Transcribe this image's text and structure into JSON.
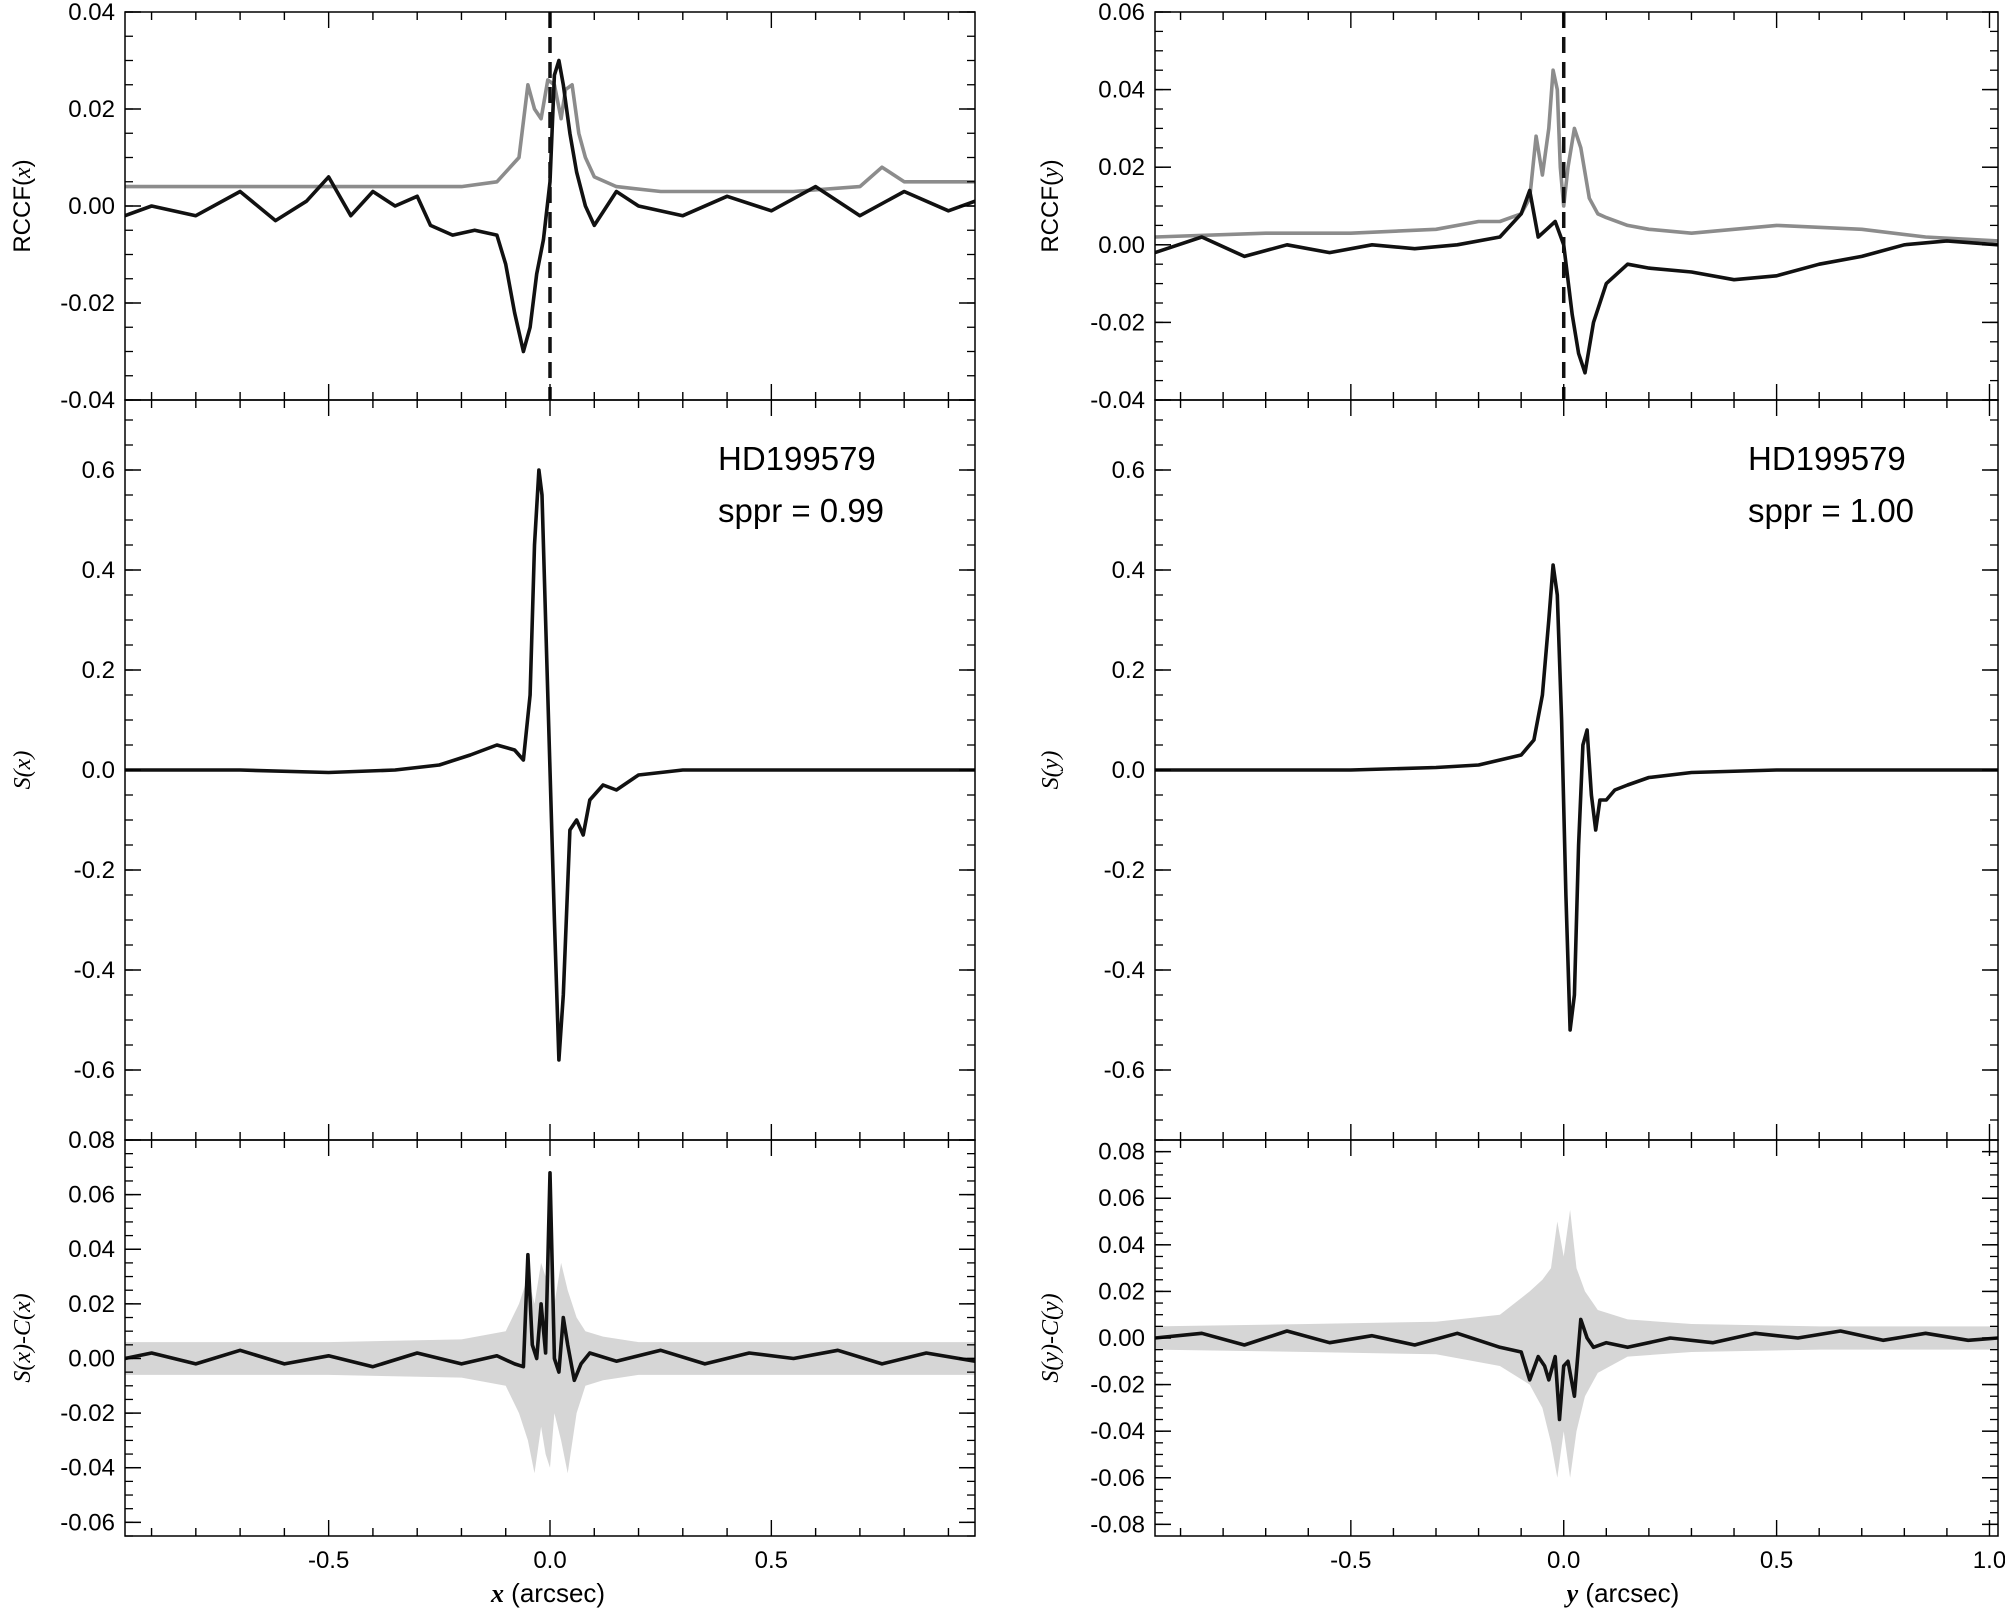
{
  "colors": {
    "main": "#111111",
    "secondary": "#8c8c8c",
    "band": "#d6d6d6",
    "axis": "#000000"
  },
  "chart_data": [
    {
      "type": "line",
      "id": "left",
      "xlabel_var": "x",
      "xlabel_unit": " (arcsec)",
      "xlim": [
        -0.96,
        0.96
      ],
      "xticks": [
        -0.5,
        0.0,
        0.5
      ],
      "xtick_labels": [
        "-0.5",
        "0.0",
        "0.5"
      ],
      "annotation": [
        "HD199579",
        "sppr = 0.99"
      ],
      "panels": [
        {
          "key": "rccf",
          "ylabel": "RCCF(x)",
          "ylim": [
            -0.04,
            0.04
          ],
          "yticks": [
            -0.04,
            -0.02,
            0.0,
            0.02,
            0.04
          ],
          "ytick_labels": [
            "-0.04",
            "-0.02",
            "0.00",
            "0.02",
            "0.04"
          ],
          "dashed_vline_x": 0.0,
          "series": [
            {
              "style": "gray",
              "x": [
                -0.96,
                -0.8,
                -0.6,
                -0.4,
                -0.2,
                -0.12,
                -0.07,
                -0.05,
                -0.035,
                -0.02,
                -0.005,
                0.01,
                0.025,
                0.035,
                0.05,
                0.065,
                0.08,
                0.1,
                0.15,
                0.25,
                0.4,
                0.55,
                0.7,
                0.75,
                0.8,
                0.96
              ],
              "y": [
                0.004,
                0.004,
                0.004,
                0.004,
                0.004,
                0.005,
                0.01,
                0.025,
                0.02,
                0.018,
                0.026,
                0.025,
                0.018,
                0.024,
                0.025,
                0.015,
                0.01,
                0.006,
                0.004,
                0.003,
                0.003,
                0.003,
                0.004,
                0.008,
                0.005,
                0.005
              ]
            },
            {
              "style": "black",
              "x": [
                -0.96,
                -0.9,
                -0.8,
                -0.7,
                -0.62,
                -0.55,
                -0.5,
                -0.45,
                -0.4,
                -0.35,
                -0.3,
                -0.27,
                -0.22,
                -0.17,
                -0.12,
                -0.1,
                -0.08,
                -0.06,
                -0.045,
                -0.03,
                -0.015,
                0.0,
                0.01,
                0.02,
                0.03,
                0.045,
                0.06,
                0.08,
                0.1,
                0.15,
                0.2,
                0.3,
                0.4,
                0.5,
                0.6,
                0.7,
                0.8,
                0.9,
                0.96
              ],
              "y": [
                -0.002,
                0.0,
                -0.002,
                0.003,
                -0.003,
                0.001,
                0.006,
                -0.002,
                0.003,
                0.0,
                0.002,
                -0.004,
                -0.006,
                -0.005,
                -0.006,
                -0.012,
                -0.022,
                -0.03,
                -0.025,
                -0.014,
                -0.007,
                0.005,
                0.027,
                0.03,
                0.025,
                0.015,
                0.007,
                0.0,
                -0.004,
                0.003,
                0.0,
                -0.002,
                0.002,
                -0.001,
                0.004,
                -0.002,
                0.003,
                -0.001,
                0.001
              ]
            }
          ]
        },
        {
          "key": "s",
          "ylabel": "S(x)",
          "ylim": [
            -0.74,
            0.74
          ],
          "yticks": [
            -0.6,
            -0.4,
            -0.2,
            0.0,
            0.2,
            0.4,
            0.6
          ],
          "ytick_labels": [
            "-0.6",
            "-0.4",
            "-0.2",
            "0.0",
            "0.2",
            "0.4",
            "0.6"
          ],
          "series": [
            {
              "style": "black",
              "x": [
                -0.96,
                -0.7,
                -0.5,
                -0.35,
                -0.25,
                -0.18,
                -0.12,
                -0.08,
                -0.06,
                -0.045,
                -0.035,
                -0.025,
                -0.018,
                -0.01,
                0.0,
                0.01,
                0.02,
                0.03,
                0.045,
                0.06,
                0.075,
                0.09,
                0.12,
                0.15,
                0.2,
                0.3,
                0.5,
                0.7,
                0.96
              ],
              "y": [
                0.0,
                0.0,
                -0.005,
                0.0,
                0.01,
                0.03,
                0.05,
                0.04,
                0.02,
                0.15,
                0.45,
                0.6,
                0.55,
                0.3,
                0.0,
                -0.3,
                -0.58,
                -0.45,
                -0.12,
                -0.1,
                -0.13,
                -0.06,
                -0.03,
                -0.04,
                -0.01,
                0.0,
                0.0,
                0.0,
                0.0
              ]
            }
          ]
        },
        {
          "key": "resid",
          "ylabel": "S(x)-C(x)",
          "ylim": [
            -0.065,
            0.08
          ],
          "yticks": [
            -0.06,
            -0.04,
            -0.02,
            0.0,
            0.02,
            0.04,
            0.06,
            0.08
          ],
          "ytick_labels": [
            "-0.06",
            "-0.04",
            "-0.02",
            "0.00",
            "0.02",
            "0.04",
            "0.06",
            "0.08"
          ],
          "band": {
            "x": [
              -0.96,
              -0.5,
              -0.2,
              -0.1,
              -0.07,
              -0.05,
              -0.035,
              -0.02,
              -0.01,
              0.0,
              0.01,
              0.025,
              0.04,
              0.06,
              0.08,
              0.12,
              0.2,
              0.5,
              0.96
            ],
            "hi": [
              0.006,
              0.006,
              0.007,
              0.01,
              0.02,
              0.03,
              0.02,
              0.035,
              0.03,
              0.04,
              0.02,
              0.035,
              0.025,
              0.015,
              0.01,
              0.008,
              0.006,
              0.006,
              0.006
            ],
            "lo": [
              -0.006,
              -0.006,
              -0.007,
              -0.01,
              -0.02,
              -0.03,
              -0.042,
              -0.025,
              -0.035,
              -0.04,
              -0.02,
              -0.03,
              -0.042,
              -0.02,
              -0.01,
              -0.008,
              -0.006,
              -0.006,
              -0.006
            ]
          },
          "series": [
            {
              "style": "black",
              "x": [
                -0.96,
                -0.9,
                -0.8,
                -0.7,
                -0.6,
                -0.5,
                -0.4,
                -0.3,
                -0.2,
                -0.12,
                -0.08,
                -0.06,
                -0.05,
                -0.04,
                -0.03,
                -0.02,
                -0.01,
                0.0,
                0.01,
                0.02,
                0.03,
                0.04,
                0.055,
                0.07,
                0.09,
                0.15,
                0.25,
                0.35,
                0.45,
                0.55,
                0.65,
                0.75,
                0.85,
                0.96
              ],
              "y": [
                0.0,
                0.002,
                -0.002,
                0.003,
                -0.002,
                0.001,
                -0.003,
                0.002,
                -0.002,
                0.001,
                -0.002,
                -0.003,
                0.038,
                0.005,
                0.0,
                0.02,
                0.002,
                0.068,
                0.0,
                -0.005,
                0.015,
                0.005,
                -0.008,
                -0.002,
                0.002,
                -0.001,
                0.003,
                -0.002,
                0.002,
                0.0,
                0.003,
                -0.002,
                0.002,
                -0.001
              ]
            }
          ]
        }
      ]
    },
    {
      "type": "line",
      "id": "right",
      "xlabel_var": "y",
      "xlabel_unit": " (arcsec)",
      "xlim": [
        -0.96,
        1.02
      ],
      "xticks": [
        -0.5,
        0.0,
        0.5,
        1.0
      ],
      "xtick_labels": [
        "-0.5",
        "0.0",
        "0.5",
        "1.0"
      ],
      "annotation": [
        "HD199579",
        "sppr = 1.00"
      ],
      "panels": [
        {
          "key": "rccf",
          "ylabel": "RCCF(y)",
          "ylim": [
            -0.04,
            0.06
          ],
          "yticks": [
            -0.04,
            -0.02,
            0.0,
            0.02,
            0.04,
            0.06
          ],
          "ytick_labels": [
            "-0.04",
            "-0.02",
            "0.00",
            "0.02",
            "0.04",
            "0.06"
          ],
          "dashed_vline_x": 0.0,
          "series": [
            {
              "style": "gray",
              "x": [
                -0.96,
                -0.7,
                -0.5,
                -0.3,
                -0.2,
                -0.15,
                -0.1,
                -0.08,
                -0.065,
                -0.05,
                -0.035,
                -0.025,
                -0.015,
                -0.008,
                0.0,
                0.01,
                0.025,
                0.04,
                0.06,
                0.08,
                0.1,
                0.15,
                0.2,
                0.3,
                0.5,
                0.7,
                0.85,
                1.02
              ],
              "y": [
                0.002,
                0.003,
                0.003,
                0.004,
                0.006,
                0.006,
                0.008,
                0.012,
                0.028,
                0.018,
                0.03,
                0.045,
                0.04,
                0.02,
                0.01,
                0.02,
                0.03,
                0.025,
                0.012,
                0.008,
                0.007,
                0.005,
                0.004,
                0.003,
                0.005,
                0.004,
                0.002,
                0.001
              ]
            },
            {
              "style": "black",
              "x": [
                -0.96,
                -0.85,
                -0.75,
                -0.65,
                -0.55,
                -0.45,
                -0.35,
                -0.25,
                -0.15,
                -0.1,
                -0.08,
                -0.06,
                -0.04,
                -0.02,
                0.0,
                0.02,
                0.035,
                0.05,
                0.07,
                0.1,
                0.15,
                0.2,
                0.3,
                0.4,
                0.5,
                0.6,
                0.7,
                0.8,
                0.9,
                1.02
              ],
              "y": [
                -0.002,
                0.002,
                -0.003,
                0.0,
                -0.002,
                0.0,
                -0.001,
                0.0,
                0.002,
                0.008,
                0.014,
                0.002,
                0.004,
                0.006,
                0.0,
                -0.018,
                -0.028,
                -0.033,
                -0.02,
                -0.01,
                -0.005,
                -0.006,
                -0.007,
                -0.009,
                -0.008,
                -0.005,
                -0.003,
                0.0,
                0.001,
                0.0
              ]
            }
          ]
        },
        {
          "key": "s",
          "ylabel": "S(y)",
          "ylim": [
            -0.74,
            0.74
          ],
          "yticks": [
            -0.6,
            -0.4,
            -0.2,
            0.0,
            0.2,
            0.4,
            0.6
          ],
          "ytick_labels": [
            "-0.6",
            "-0.4",
            "-0.2",
            "0.0",
            "0.2",
            "0.4",
            "0.6"
          ],
          "series": [
            {
              "style": "black",
              "x": [
                -0.96,
                -0.7,
                -0.5,
                -0.3,
                -0.2,
                -0.15,
                -0.1,
                -0.07,
                -0.05,
                -0.035,
                -0.025,
                -0.015,
                -0.005,
                0.005,
                0.015,
                0.025,
                0.035,
                0.045,
                0.055,
                0.065,
                0.075,
                0.085,
                0.1,
                0.12,
                0.15,
                0.2,
                0.3,
                0.5,
                0.7,
                1.02
              ],
              "y": [
                0.0,
                0.0,
                0.0,
                0.005,
                0.01,
                0.02,
                0.03,
                0.06,
                0.15,
                0.3,
                0.41,
                0.35,
                0.1,
                -0.25,
                -0.52,
                -0.45,
                -0.15,
                0.05,
                0.08,
                -0.05,
                -0.12,
                -0.06,
                -0.06,
                -0.04,
                -0.03,
                -0.015,
                -0.005,
                0.0,
                0.0,
                0.0
              ]
            }
          ]
        },
        {
          "key": "resid",
          "ylabel": "S(y)-C(y)",
          "ylim": [
            -0.085,
            0.085
          ],
          "yticks": [
            -0.08,
            -0.06,
            -0.04,
            -0.02,
            0.0,
            0.02,
            0.04,
            0.06,
            0.08
          ],
          "ytick_labels": [
            "-0.08",
            "-0.06",
            "-0.04",
            "-0.02",
            "0.00",
            "0.02",
            "0.04",
            "0.06",
            "0.08"
          ],
          "band": {
            "x": [
              -0.96,
              -0.6,
              -0.3,
              -0.15,
              -0.08,
              -0.05,
              -0.03,
              -0.015,
              0.0,
              0.015,
              0.03,
              0.05,
              0.08,
              0.15,
              0.3,
              0.6,
              1.02
            ],
            "hi": [
              0.005,
              0.006,
              0.007,
              0.01,
              0.02,
              0.025,
              0.03,
              0.05,
              0.035,
              0.055,
              0.03,
              0.02,
              0.012,
              0.008,
              0.006,
              0.005,
              0.005
            ],
            "lo": [
              -0.005,
              -0.006,
              -0.007,
              -0.012,
              -0.02,
              -0.03,
              -0.045,
              -0.06,
              -0.04,
              -0.06,
              -0.04,
              -0.025,
              -0.015,
              -0.008,
              -0.006,
              -0.005,
              -0.005
            ]
          },
          "series": [
            {
              "style": "black",
              "x": [
                -0.96,
                -0.85,
                -0.75,
                -0.65,
                -0.55,
                -0.45,
                -0.35,
                -0.25,
                -0.15,
                -0.1,
                -0.08,
                -0.06,
                -0.045,
                -0.035,
                -0.02,
                -0.01,
                0.0,
                0.01,
                0.025,
                0.04,
                0.055,
                0.07,
                0.1,
                0.15,
                0.25,
                0.35,
                0.45,
                0.55,
                0.65,
                0.75,
                0.85,
                0.95,
                1.02
              ],
              "y": [
                0.0,
                0.002,
                -0.003,
                0.003,
                -0.002,
                0.001,
                -0.003,
                0.002,
                -0.004,
                -0.006,
                -0.018,
                -0.008,
                -0.012,
                -0.018,
                -0.008,
                -0.035,
                -0.012,
                -0.01,
                -0.025,
                0.008,
                0.0,
                -0.004,
                -0.002,
                -0.004,
                0.0,
                -0.002,
                0.002,
                0.0,
                0.003,
                -0.001,
                0.002,
                -0.001,
                0.0
              ]
            }
          ]
        }
      ]
    }
  ]
}
